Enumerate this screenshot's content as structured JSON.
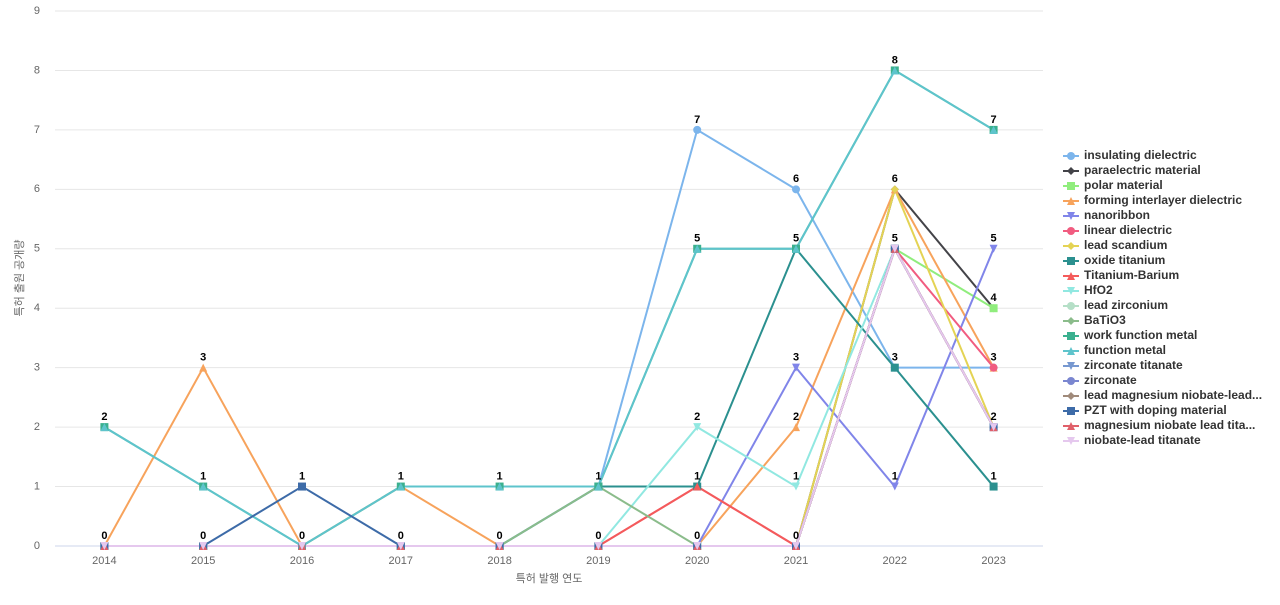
{
  "chart_data": {
    "type": "line",
    "x_label": "특허 발행 연도",
    "y_label": "특허 출원 공개량",
    "categories": [
      "2014",
      "2015",
      "2016",
      "2017",
      "2018",
      "2019",
      "2020",
      "2021",
      "2022",
      "2023"
    ],
    "ylim": [
      0,
      9
    ],
    "yticks": [
      0,
      1,
      2,
      3,
      4,
      5,
      6,
      7,
      8,
      9
    ],
    "grid": true,
    "legend": "right",
    "series": [
      {
        "name": "insulating dielectric",
        "color": "#7cb5ec",
        "marker": "circle",
        "values": [
          0,
          0,
          0,
          0,
          0,
          1,
          7,
          6,
          3,
          3
        ]
      },
      {
        "name": "paraelectric material",
        "color": "#434348",
        "marker": "diamond",
        "values": [
          0,
          0,
          0,
          0,
          0,
          0,
          0,
          0,
          6,
          4
        ]
      },
      {
        "name": "polar material",
        "color": "#90ed7d",
        "marker": "square",
        "values": [
          0,
          0,
          0,
          0,
          0,
          0,
          0,
          0,
          5,
          4
        ]
      },
      {
        "name": "forming interlayer dielectric",
        "color": "#f7a35c",
        "marker": "triangle",
        "values": [
          0,
          3,
          0,
          1,
          0,
          0,
          0,
          2,
          6,
          3
        ]
      },
      {
        "name": "nanoribbon",
        "color": "#8085e9",
        "marker": "triangle-down",
        "values": [
          0,
          0,
          0,
          0,
          0,
          0,
          0,
          3,
          1,
          5
        ]
      },
      {
        "name": "linear dielectric",
        "color": "#f15c80",
        "marker": "circle",
        "values": [
          0,
          0,
          0,
          0,
          0,
          0,
          1,
          0,
          5,
          3
        ]
      },
      {
        "name": "lead scandium",
        "color": "#e4d354",
        "marker": "diamond",
        "values": [
          0,
          0,
          0,
          0,
          0,
          0,
          0,
          0,
          6,
          2
        ]
      },
      {
        "name": "oxide titanium",
        "color": "#2b908f",
        "marker": "square",
        "values": [
          0,
          0,
          0,
          0,
          0,
          1,
          1,
          5,
          3,
          1
        ]
      },
      {
        "name": "Titanium-Barium",
        "color": "#f45b5b",
        "marker": "triangle",
        "values": [
          0,
          0,
          0,
          0,
          0,
          0,
          1,
          0,
          5,
          2
        ]
      },
      {
        "name": "HfO2",
        "color": "#91e8e1",
        "marker": "triangle-down",
        "values": [
          0,
          0,
          0,
          0,
          0,
          0,
          2,
          1,
          5,
          2
        ]
      },
      {
        "name": "lead zirconium",
        "color": "#b5dfc7",
        "marker": "circle",
        "values": [
          0,
          0,
          0,
          0,
          0,
          0,
          0,
          0,
          5,
          2
        ]
      },
      {
        "name": "BaTiO3",
        "color": "#8bbc8b",
        "marker": "diamond",
        "values": [
          0,
          0,
          0,
          0,
          0,
          1,
          0,
          0,
          5,
          2
        ]
      },
      {
        "name": "work function metal",
        "color": "#3bb08f",
        "marker": "square",
        "values": [
          2,
          1,
          0,
          1,
          1,
          1,
          5,
          5,
          8,
          7
        ]
      },
      {
        "name": "function metal",
        "color": "#5ec4cc",
        "marker": "triangle",
        "values": [
          2,
          1,
          0,
          1,
          1,
          1,
          5,
          5,
          8,
          7
        ]
      },
      {
        "name": "zirconate titanate",
        "color": "#7798d0",
        "marker": "triangle-down",
        "values": [
          0,
          0,
          0,
          0,
          0,
          0,
          0,
          0,
          5,
          2
        ]
      },
      {
        "name": "zirconate",
        "color": "#7a86d0",
        "marker": "circle",
        "values": [
          0,
          0,
          0,
          0,
          0,
          0,
          0,
          0,
          5,
          2
        ]
      },
      {
        "name": "lead magnesium niobate-lead...",
        "color": "#a08a7a",
        "marker": "diamond",
        "values": [
          0,
          0,
          0,
          0,
          0,
          0,
          0,
          0,
          5,
          2
        ]
      },
      {
        "name": "PZT with doping material",
        "color": "#3d6ba8",
        "marker": "square",
        "values": [
          0,
          0,
          1,
          0,
          0,
          0,
          0,
          0,
          5,
          2
        ]
      },
      {
        "name": "magnesium niobate lead tita...",
        "color": "#e0606a",
        "marker": "triangle",
        "values": [
          0,
          0,
          0,
          0,
          0,
          0,
          0,
          0,
          5,
          2
        ]
      },
      {
        "name": "niobate-lead titanate",
        "color": "#e5c8ee",
        "marker": "triangle-down",
        "values": [
          0,
          0,
          0,
          0,
          0,
          0,
          0,
          0,
          5,
          2
        ]
      }
    ]
  }
}
